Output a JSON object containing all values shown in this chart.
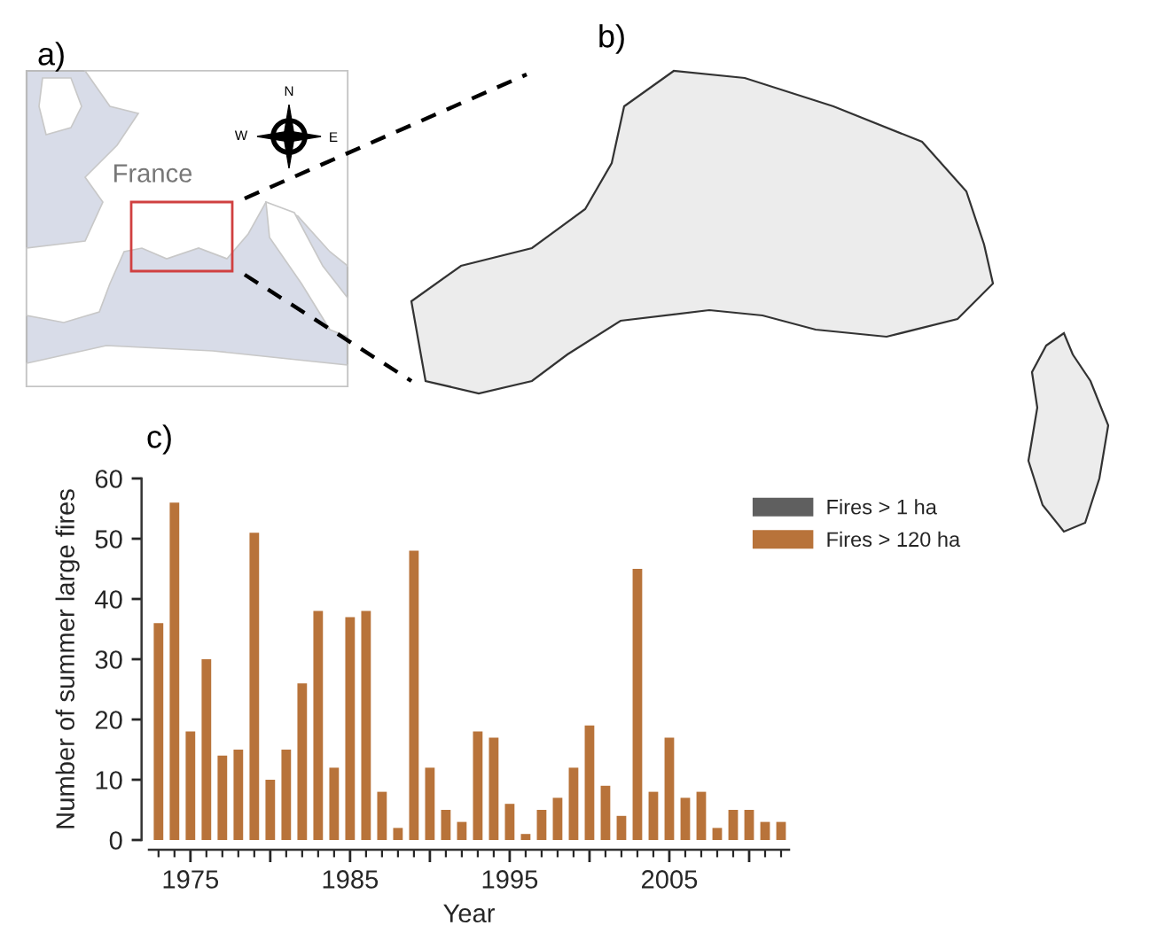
{
  "chart_data": {
    "type": "bar",
    "xlabel": "Year",
    "ylabel": "Number of summer large fires",
    "x": [
      1973,
      1974,
      1975,
      1976,
      1977,
      1978,
      1979,
      1980,
      1981,
      1982,
      1983,
      1984,
      1985,
      1986,
      1987,
      1988,
      1989,
      1990,
      1991,
      1992,
      1993,
      1994,
      1995,
      1996,
      1997,
      1998,
      1999,
      2000,
      2001,
      2002,
      2003,
      2004,
      2005,
      2006,
      2007,
      2008,
      2009,
      2010,
      2011,
      2012
    ],
    "series": [
      {
        "name": "Fires > 1 ha",
        "color": "#5f5f5f",
        "values": [
          null,
          null,
          null,
          null,
          null,
          null,
          null,
          null,
          null,
          null,
          null,
          null,
          null,
          null,
          null,
          null,
          null,
          null,
          null,
          null,
          null,
          null,
          null,
          null,
          null,
          null,
          null,
          null,
          null,
          null,
          null,
          null,
          null,
          null,
          null,
          null,
          null,
          null,
          null,
          null
        ]
      },
      {
        "name": "Fires > 120 ha",
        "color": "#b8733a",
        "values": [
          36,
          56,
          18,
          30,
          14,
          15,
          51,
          10,
          15,
          26,
          38,
          12,
          37,
          38,
          8,
          2,
          48,
          12,
          5,
          3,
          18,
          17,
          6,
          1,
          5,
          7,
          12,
          19,
          9,
          4,
          45,
          8,
          17,
          7,
          8,
          2,
          5,
          5,
          3,
          3
        ]
      }
    ],
    "xlim": [
      1972.4,
      2012.5
    ],
    "xticks": [
      1975,
      {
        "value": 1980,
        "label": null
      },
      1985,
      {
        "value": 1990,
        "label": null
      },
      1995,
      {
        "value": 2000,
        "label": null
      },
      2005,
      {
        "value": 2010,
        "label": null
      }
    ],
    "ylim": [
      0,
      60
    ],
    "yticks": [
      0,
      10,
      20,
      30,
      40,
      50,
      60
    ],
    "legend": "top right",
    "annotations": [
      "a)",
      "b)",
      "c)",
      "France",
      "N",
      "W",
      "E"
    ]
  }
}
